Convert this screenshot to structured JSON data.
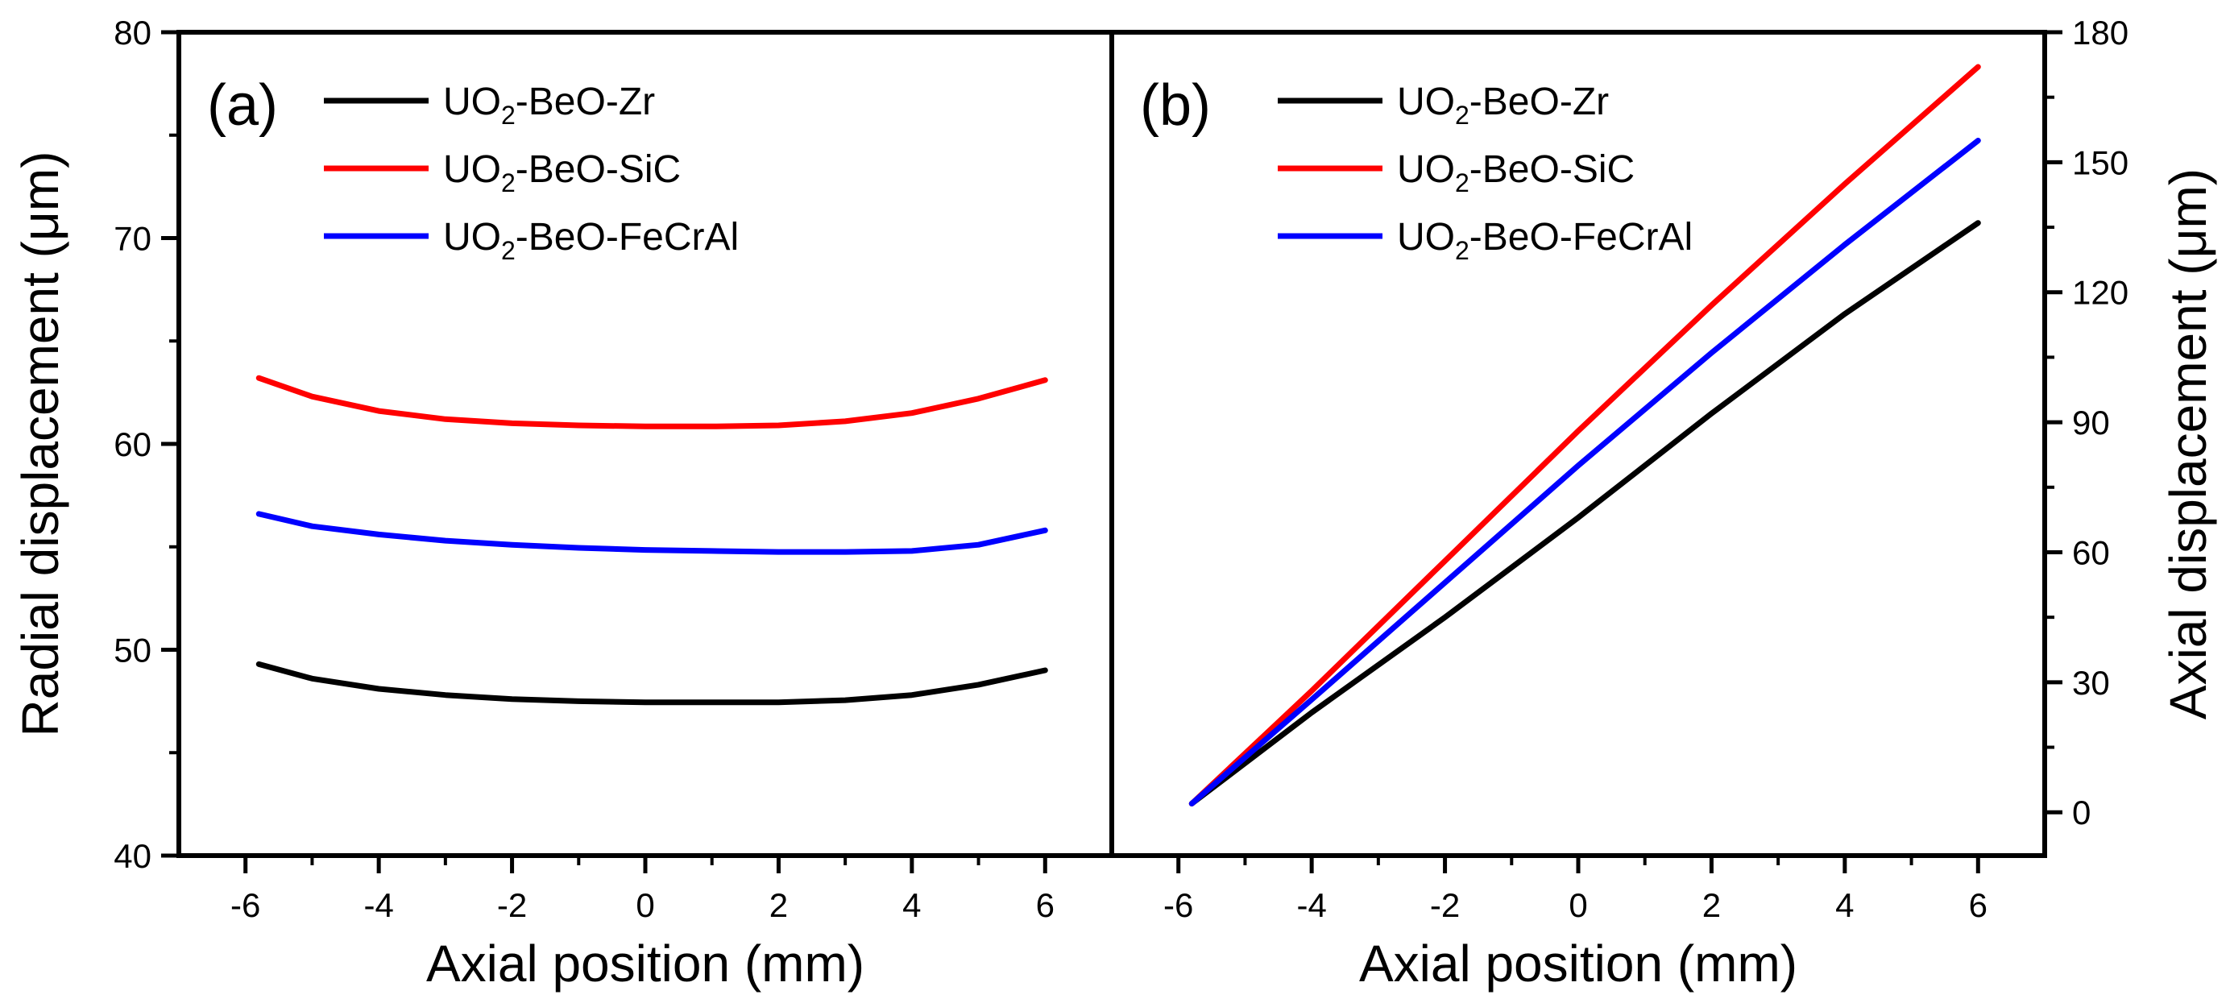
{
  "chart_data": [
    {
      "type": "line",
      "panel_label": "(a)",
      "xlabel": "Axial position (mm)",
      "ylabel": "Radial displacement (μm)",
      "xlim": [
        -7,
        7
      ],
      "ylim": [
        40,
        80
      ],
      "xticks": [
        -6,
        -4,
        -2,
        0,
        2,
        4,
        6
      ],
      "yticks": [
        40,
        50,
        60,
        70,
        80
      ],
      "grid": false,
      "legend_position": "top-left",
      "series": [
        {
          "name": "UO2-BeO-Zr",
          "name_parts": [
            "UO",
            "2",
            "-BeO-Zr"
          ],
          "color": "#000000",
          "x": [
            -5.8,
            -5,
            -4,
            -3,
            -2,
            -1,
            0,
            1,
            2,
            3,
            4,
            5,
            6
          ],
          "y": [
            49.3,
            48.6,
            48.1,
            47.8,
            47.6,
            47.5,
            47.45,
            47.45,
            47.45,
            47.55,
            47.8,
            48.3,
            49.0
          ]
        },
        {
          "name": "UO2-BeO-SiC",
          "name_parts": [
            "UO",
            "2",
            "-BeO-SiC"
          ],
          "color": "#ff0000",
          "x": [
            -5.8,
            -5,
            -4,
            -3,
            -2,
            -1,
            0,
            1,
            2,
            3,
            4,
            5,
            6
          ],
          "y": [
            63.2,
            62.3,
            61.6,
            61.2,
            61.0,
            60.9,
            60.85,
            60.85,
            60.9,
            61.1,
            61.5,
            62.2,
            63.1
          ]
        },
        {
          "name": "UO2-BeO-FeCrAl",
          "name_parts": [
            "UO",
            "2",
            "-BeO-FeCrAl"
          ],
          "color": "#0000ff",
          "x": [
            -5.8,
            -5,
            -4,
            -3,
            -2,
            -1,
            0,
            1,
            2,
            3,
            4,
            5,
            6
          ],
          "y": [
            56.6,
            56.0,
            55.6,
            55.3,
            55.1,
            54.95,
            54.85,
            54.8,
            54.75,
            54.75,
            54.8,
            55.1,
            55.8
          ]
        }
      ]
    },
    {
      "type": "line",
      "panel_label": "(b)",
      "xlabel": "Axial position (mm)",
      "ylabel": "Axial displacement (μm)",
      "xlim": [
        -7,
        7
      ],
      "ylim": [
        -10,
        180
      ],
      "xticks": [
        -6,
        -4,
        -2,
        0,
        2,
        4,
        6
      ],
      "yticks": [
        0,
        30,
        60,
        90,
        120,
        150,
        180
      ],
      "grid": false,
      "legend_position": "top-left",
      "series": [
        {
          "name": "UO2-BeO-Zr",
          "name_parts": [
            "UO",
            "2",
            "-BeO-Zr"
          ],
          "color": "#000000",
          "x": [
            -5.8,
            -4,
            -2,
            0,
            2,
            4,
            6
          ],
          "y": [
            2,
            23,
            45,
            68,
            92,
            115,
            136
          ]
        },
        {
          "name": "UO2-BeO-SiC",
          "name_parts": [
            "UO",
            "2",
            "-BeO-SiC"
          ],
          "color": "#ff0000",
          "x": [
            -5.8,
            -4,
            -2,
            0,
            2,
            4,
            6
          ],
          "y": [
            2,
            28,
            58,
            88,
            117,
            145,
            172
          ]
        },
        {
          "name": "UO2-BeO-FeCrAl",
          "name_parts": [
            "UO",
            "2",
            "-BeO-FeCrAl"
          ],
          "color": "#0000ff",
          "x": [
            -5.8,
            -4,
            -2,
            0,
            2,
            4,
            6
          ],
          "y": [
            2,
            26,
            53,
            80,
            106,
            131,
            155
          ]
        }
      ]
    }
  ]
}
